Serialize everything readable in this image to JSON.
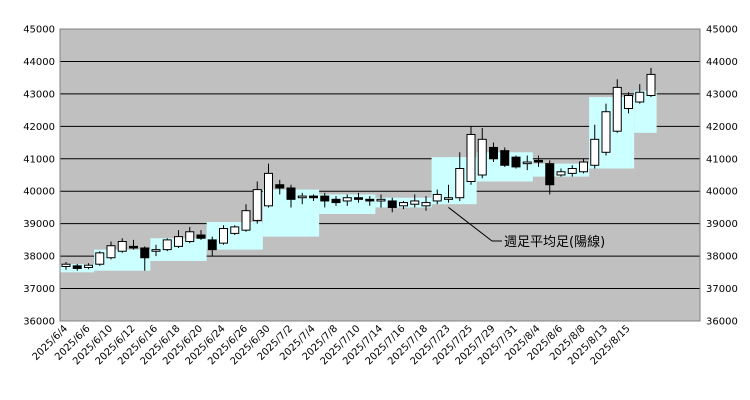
{
  "chart_data": {
    "type": "candlestick",
    "y_axis": {
      "min": 36000,
      "max": 45000,
      "step": 1000,
      "show_on": "left-and-right"
    },
    "grid": {
      "horizontal": true,
      "vertical": false
    },
    "plot_background": "#c0c0c0",
    "colors": {
      "up_candle": "#ffffff",
      "down_candle": "#000000",
      "weekly_band_fill": "#ccffff",
      "gridline": "#000000"
    },
    "x_tick_labels": [
      "2025/6/4",
      "2025/6/6",
      "2025/6/10",
      "2025/6/12",
      "2025/6/16",
      "2025/6/18",
      "2025/6/20",
      "2025/6/24",
      "2025/6/26",
      "2025/6/30",
      "2025/7/2",
      "2025/7/4",
      "2025/7/8",
      "2025/7/10",
      "2025/7/14",
      "2025/7/16",
      "2025/7/18",
      "2025/7/23",
      "2025/7/25",
      "2025/7/29",
      "2025/7/31",
      "2025/8/4",
      "2025/8/6",
      "2025/8/8",
      "2025/8/13",
      "2025/8/15"
    ],
    "candles": [
      {
        "date": "2025/6/4",
        "open": 37680,
        "high": 37820,
        "low": 37580,
        "close": 37750
      },
      {
        "date": "2025/6/5",
        "open": 37700,
        "high": 37760,
        "low": 37550,
        "close": 37620
      },
      {
        "date": "2025/6/6",
        "open": 37650,
        "high": 37780,
        "low": 37600,
        "close": 37720
      },
      {
        "date": "2025/6/9",
        "open": 37750,
        "high": 38150,
        "low": 37700,
        "close": 38100
      },
      {
        "date": "2025/6/10",
        "open": 37950,
        "high": 38450,
        "low": 37900,
        "close": 38320
      },
      {
        "date": "2025/6/11",
        "open": 38150,
        "high": 38550,
        "low": 38100,
        "close": 38450
      },
      {
        "date": "2025/6/12",
        "open": 38300,
        "high": 38500,
        "low": 38200,
        "close": 38250
      },
      {
        "date": "2025/6/13",
        "open": 38250,
        "high": 38300,
        "low": 37550,
        "close": 37950
      },
      {
        "date": "2025/6/16",
        "open": 38150,
        "high": 38350,
        "low": 38000,
        "close": 38200
      },
      {
        "date": "2025/6/17",
        "open": 38200,
        "high": 38550,
        "low": 38150,
        "close": 38500
      },
      {
        "date": "2025/6/18",
        "open": 38300,
        "high": 38800,
        "low": 38250,
        "close": 38600
      },
      {
        "date": "2025/6/19",
        "open": 38450,
        "high": 38900,
        "low": 38400,
        "close": 38750
      },
      {
        "date": "2025/6/20",
        "open": 38650,
        "high": 38800,
        "low": 38500,
        "close": 38550
      },
      {
        "date": "2025/6/23",
        "open": 38500,
        "high": 38600,
        "low": 38000,
        "close": 38200
      },
      {
        "date": "2025/6/24",
        "open": 38400,
        "high": 38950,
        "low": 38350,
        "close": 38850
      },
      {
        "date": "2025/6/25",
        "open": 38700,
        "high": 38950,
        "low": 38650,
        "close": 38900
      },
      {
        "date": "2025/6/26",
        "open": 38800,
        "high": 39600,
        "low": 38750,
        "close": 39400
      },
      {
        "date": "2025/6/27",
        "open": 39100,
        "high": 40300,
        "low": 39000,
        "close": 40050
      },
      {
        "date": "2025/6/30",
        "open": 39550,
        "high": 40850,
        "low": 39500,
        "close": 40550
      },
      {
        "date": "2025/7/1",
        "open": 40200,
        "high": 40350,
        "low": 39900,
        "close": 40100
      },
      {
        "date": "2025/7/2",
        "open": 40100,
        "high": 40200,
        "low": 39500,
        "close": 39750
      },
      {
        "date": "2025/7/3",
        "open": 39800,
        "high": 39950,
        "low": 39600,
        "close": 39850
      },
      {
        "date": "2025/7/4",
        "open": 39850,
        "high": 39900,
        "low": 39700,
        "close": 39800
      },
      {
        "date": "2025/7/7",
        "open": 39850,
        "high": 39950,
        "low": 39500,
        "close": 39700
      },
      {
        "date": "2025/7/8",
        "open": 39750,
        "high": 39850,
        "low": 39550,
        "close": 39650
      },
      {
        "date": "2025/7/9",
        "open": 39700,
        "high": 39900,
        "low": 39550,
        "close": 39800
      },
      {
        "date": "2025/7/10",
        "open": 39800,
        "high": 39950,
        "low": 39650,
        "close": 39750
      },
      {
        "date": "2025/7/11",
        "open": 39750,
        "high": 39850,
        "low": 39550,
        "close": 39700
      },
      {
        "date": "2025/7/14",
        "open": 39700,
        "high": 39900,
        "low": 39500,
        "close": 39750
      },
      {
        "date": "2025/7/15",
        "open": 39700,
        "high": 39800,
        "low": 39350,
        "close": 39500
      },
      {
        "date": "2025/7/16",
        "open": 39550,
        "high": 39700,
        "low": 39450,
        "close": 39650
      },
      {
        "date": "2025/7/17",
        "open": 39600,
        "high": 39900,
        "low": 39500,
        "close": 39700
      },
      {
        "date": "2025/7/18",
        "open": 39550,
        "high": 39850,
        "low": 39400,
        "close": 39650
      },
      {
        "date": "2025/7/22",
        "open": 39700,
        "high": 40050,
        "low": 39600,
        "close": 39900
      },
      {
        "date": "2025/7/23",
        "open": 39750,
        "high": 40200,
        "low": 39650,
        "close": 39800
      },
      {
        "date": "2025/7/24",
        "open": 39800,
        "high": 41200,
        "low": 39700,
        "close": 40700
      },
      {
        "date": "2025/7/25",
        "open": 40300,
        "high": 42000,
        "low": 40200,
        "close": 41750
      },
      {
        "date": "2025/7/28",
        "open": 40500,
        "high": 41950,
        "low": 40400,
        "close": 41600
      },
      {
        "date": "2025/7/29",
        "open": 41350,
        "high": 41500,
        "low": 40900,
        "close": 41000
      },
      {
        "date": "2025/7/30",
        "open": 41250,
        "high": 41350,
        "low": 40750,
        "close": 40800
      },
      {
        "date": "2025/7/31",
        "open": 41050,
        "high": 41100,
        "low": 40700,
        "close": 40750
      },
      {
        "date": "2025/8/1",
        "open": 40850,
        "high": 41100,
        "low": 40650,
        "close": 40900
      },
      {
        "date": "2025/8/4",
        "open": 40950,
        "high": 41100,
        "low": 40750,
        "close": 40900
      },
      {
        "date": "2025/8/5",
        "open": 40850,
        "high": 40950,
        "low": 39900,
        "close": 40200
      },
      {
        "date": "2025/8/6",
        "open": 40500,
        "high": 40700,
        "low": 40450,
        "close": 40600
      },
      {
        "date": "2025/8/7",
        "open": 40550,
        "high": 40800,
        "low": 40450,
        "close": 40700
      },
      {
        "date": "2025/8/8",
        "open": 40600,
        "high": 41000,
        "low": 40550,
        "close": 40900
      },
      {
        "date": "2025/8/12",
        "open": 40800,
        "high": 42050,
        "low": 40700,
        "close": 41600
      },
      {
        "date": "2025/8/13",
        "open": 41200,
        "high": 42700,
        "low": 41100,
        "close": 42450
      },
      {
        "date": "2025/8/14",
        "open": 41850,
        "high": 43450,
        "low": 41800,
        "close": 43200
      },
      {
        "date": "2025/8/15",
        "open": 42550,
        "high": 43050,
        "low": 42400,
        "close": 42950
      },
      {
        "date": "2025/8/18",
        "open": 42750,
        "high": 43300,
        "low": 42700,
        "close": 43050
      },
      {
        "date": "2025/8/19",
        "open": 42950,
        "high": 43800,
        "low": 42900,
        "close": 43600
      }
    ],
    "weekly_band": [
      {
        "from": "2025/6/4",
        "to": "2025/6/6",
        "low": 37500,
        "high": 37750
      },
      {
        "from": "2025/6/9",
        "to": "2025/6/13",
        "low": 37550,
        "high": 38200
      },
      {
        "from": "2025/6/16",
        "to": "2025/6/20",
        "low": 37850,
        "high": 38550
      },
      {
        "from": "2025/6/23",
        "to": "2025/6/27",
        "low": 38200,
        "high": 39050
      },
      {
        "from": "2025/6/30",
        "to": "2025/7/4",
        "low": 38600,
        "high": 40050
      },
      {
        "from": "2025/7/7",
        "to": "2025/7/11",
        "low": 39300,
        "high": 39900
      },
      {
        "from": "2025/7/14",
        "to": "2025/7/18",
        "low": 39500,
        "high": 39800
      },
      {
        "from": "2025/7/22",
        "to": "2025/7/25",
        "low": 39600,
        "high": 41050
      },
      {
        "from": "2025/7/28",
        "to": "2025/8/1",
        "low": 40300,
        "high": 41200
      },
      {
        "from": "2025/8/4",
        "to": "2025/8/8",
        "low": 40450,
        "high": 40850
      },
      {
        "from": "2025/8/12",
        "to": "2025/8/15",
        "low": 40700,
        "high": 42900
      },
      {
        "from": "2025/8/18",
        "to": "2025/8/19",
        "low": 41800,
        "high": 43100
      }
    ],
    "annotation": {
      "text": "週足平均足(陽線)",
      "target_date": "2025/7/23"
    }
  }
}
